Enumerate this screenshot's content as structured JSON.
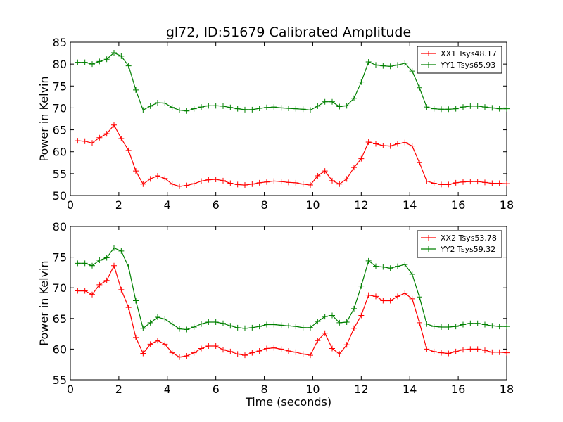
{
  "title": "gl72, ID:51679 Calibrated Amplitude",
  "chart_data": [
    {
      "type": "line",
      "ylabel": "Power in Kelvin",
      "xlabel": "",
      "xlim": [
        0,
        18
      ],
      "ylim": [
        50,
        85
      ],
      "xticks": [
        0,
        2,
        4,
        6,
        8,
        10,
        12,
        14,
        16,
        18
      ],
      "yticks": [
        50,
        55,
        60,
        65,
        70,
        75,
        80,
        85
      ],
      "grid": false,
      "legend_position": "top-right",
      "x": [
        0.3,
        0.6,
        0.9,
        1.2,
        1.5,
        1.8,
        2.1,
        2.4,
        2.7,
        3.0,
        3.3,
        3.6,
        3.9,
        4.2,
        4.5,
        4.8,
        5.1,
        5.4,
        5.7,
        6.0,
        6.3,
        6.6,
        6.9,
        7.2,
        7.5,
        7.8,
        8.1,
        8.4,
        8.7,
        9.0,
        9.3,
        9.6,
        9.9,
        10.2,
        10.5,
        10.8,
        11.1,
        11.4,
        11.7,
        12.0,
        12.3,
        12.6,
        12.9,
        13.2,
        13.5,
        13.8,
        14.1,
        14.4,
        14.7,
        15.0,
        15.3,
        15.6,
        15.9,
        16.2,
        16.5,
        16.8,
        17.1,
        17.4,
        17.7,
        18.0
      ],
      "series": [
        {
          "name": "XX1 Tsys48.17",
          "color": "#ff0000",
          "values": [
            62.5,
            62.4,
            62.0,
            63.2,
            64.1,
            66.1,
            63.0,
            60.3,
            55.6,
            52.6,
            53.8,
            54.5,
            53.9,
            52.6,
            52.1,
            52.3,
            52.7,
            53.3,
            53.6,
            53.7,
            53.4,
            52.8,
            52.5,
            52.4,
            52.6,
            52.9,
            53.1,
            53.3,
            53.2,
            53.0,
            52.9,
            52.6,
            52.4,
            54.5,
            55.6,
            53.4,
            52.6,
            53.8,
            56.4,
            58.4,
            62.2,
            61.8,
            61.4,
            61.3,
            61.8,
            62.1,
            61.3,
            57.5,
            53.3,
            52.8,
            52.5,
            52.5,
            52.9,
            53.1,
            53.2,
            53.2,
            53.0,
            52.8,
            52.8,
            52.7
          ]
        },
        {
          "name": "YY1 Tsys65.93",
          "color": "#008000",
          "values": [
            80.4,
            80.4,
            80.0,
            80.6,
            81.1,
            82.6,
            81.8,
            79.6,
            74.1,
            69.5,
            70.4,
            71.2,
            71.1,
            70.1,
            69.5,
            69.3,
            69.8,
            70.2,
            70.5,
            70.5,
            70.4,
            70.1,
            69.8,
            69.6,
            69.6,
            69.9,
            70.1,
            70.2,
            70.0,
            69.9,
            69.8,
            69.7,
            69.5,
            70.4,
            71.4,
            71.4,
            70.3,
            70.5,
            72.2,
            75.9,
            80.5,
            79.8,
            79.6,
            79.5,
            79.8,
            80.2,
            78.4,
            74.6,
            70.2,
            69.8,
            69.7,
            69.7,
            69.8,
            70.2,
            70.4,
            70.4,
            70.2,
            70.0,
            69.8,
            69.8
          ]
        }
      ]
    },
    {
      "type": "line",
      "ylabel": "Power in Kelvin",
      "xlabel": "Time (seconds)",
      "xlim": [
        0,
        18
      ],
      "ylim": [
        55,
        80
      ],
      "xticks": [
        0,
        2,
        4,
        6,
        8,
        10,
        12,
        14,
        16,
        18
      ],
      "yticks": [
        55,
        60,
        65,
        70,
        75,
        80
      ],
      "grid": false,
      "legend_position": "top-right",
      "x": [
        0.3,
        0.6,
        0.9,
        1.2,
        1.5,
        1.8,
        2.1,
        2.4,
        2.7,
        3.0,
        3.3,
        3.6,
        3.9,
        4.2,
        4.5,
        4.8,
        5.1,
        5.4,
        5.7,
        6.0,
        6.3,
        6.6,
        6.9,
        7.2,
        7.5,
        7.8,
        8.1,
        8.4,
        8.7,
        9.0,
        9.3,
        9.6,
        9.9,
        10.2,
        10.5,
        10.8,
        11.1,
        11.4,
        11.7,
        12.0,
        12.3,
        12.6,
        12.9,
        13.2,
        13.5,
        13.8,
        14.1,
        14.4,
        14.7,
        15.0,
        15.3,
        15.6,
        15.9,
        16.2,
        16.5,
        16.8,
        17.1,
        17.4,
        17.7,
        18.0
      ],
      "series": [
        {
          "name": "XX2 Tsys53.78",
          "color": "#ff0000",
          "values": [
            69.5,
            69.5,
            68.9,
            70.5,
            71.2,
            73.6,
            69.7,
            66.8,
            61.9,
            59.3,
            60.8,
            61.4,
            60.8,
            59.4,
            58.7,
            58.9,
            59.4,
            60.1,
            60.5,
            60.5,
            59.9,
            59.6,
            59.2,
            59.0,
            59.4,
            59.7,
            60.1,
            60.2,
            60.0,
            59.7,
            59.5,
            59.2,
            59.0,
            61.4,
            62.6,
            60.1,
            59.2,
            60.7,
            63.4,
            65.5,
            68.8,
            68.6,
            67.9,
            67.9,
            68.6,
            69.1,
            68.2,
            64.3,
            60.0,
            59.6,
            59.4,
            59.3,
            59.6,
            59.9,
            60.0,
            60.0,
            59.8,
            59.5,
            59.5,
            59.4
          ]
        },
        {
          "name": "YY2 Tsys59.32",
          "color": "#008000",
          "values": [
            74.0,
            74.0,
            73.6,
            74.5,
            74.9,
            76.5,
            76.0,
            73.4,
            67.9,
            63.4,
            64.3,
            65.2,
            64.9,
            64.1,
            63.3,
            63.2,
            63.6,
            64.1,
            64.4,
            64.4,
            64.2,
            63.8,
            63.5,
            63.4,
            63.5,
            63.7,
            64.0,
            64.0,
            63.9,
            63.8,
            63.7,
            63.5,
            63.5,
            64.5,
            65.3,
            65.5,
            64.3,
            64.4,
            66.6,
            70.3,
            74.4,
            73.5,
            73.4,
            73.2,
            73.5,
            73.8,
            72.2,
            68.5,
            64.1,
            63.7,
            63.6,
            63.6,
            63.7,
            64.0,
            64.2,
            64.2,
            64.0,
            63.8,
            63.7,
            63.7
          ]
        }
      ]
    }
  ]
}
